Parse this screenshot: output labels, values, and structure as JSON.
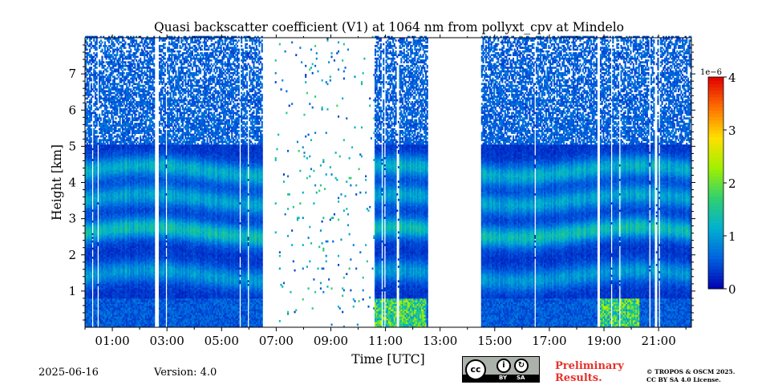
{
  "chart_data": {
    "type": "heatmap",
    "title": "Quasi backscatter coefficient (V1) at 1064 nm from pollyxt_cpv at Mindelo",
    "xlabel": "Time [UTC]",
    "ylabel": "Height [km]",
    "xlim": [
      0.0,
      22.2
    ],
    "ylim": [
      0.0,
      8.0
    ],
    "x_ticks": [
      1,
      3,
      5,
      7,
      9,
      11,
      13,
      15,
      17,
      19,
      21
    ],
    "x_tick_labels": [
      "01:00",
      "03:00",
      "05:00",
      "07:00",
      "09:00",
      "11:00",
      "13:00",
      "15:00",
      "17:00",
      "19:00",
      "21:00"
    ],
    "y_ticks": [
      1,
      2,
      3,
      4,
      5,
      6,
      7
    ],
    "y_tick_labels": [
      "1",
      "2",
      "3",
      "4",
      "5",
      "6",
      "7"
    ],
    "colorbar": {
      "range": [
        0,
        4
      ],
      "ticks": [
        "0",
        "1",
        "2",
        "3",
        "4"
      ],
      "multiplier": "1e−6",
      "colormap": [
        "#0000b0",
        "#0060e0",
        "#00b0d0",
        "#30d070",
        "#a0f000",
        "#ffe000",
        "#ff7000",
        "#e00000"
      ]
    },
    "data_gaps_utc": [
      [
        2.5,
        2.65
      ],
      [
        6.45,
        6.9
      ],
      [
        12.55,
        14.5
      ],
      [
        18.75,
        18.82
      ],
      [
        20.85,
        20.9
      ]
    ],
    "noise_only_utc": [
      [
        6.9,
        10.6
      ]
    ],
    "aerosol_layer_top_km": 5.0,
    "layers": [
      {
        "height_km": 1.4,
        "value": 0.7
      },
      {
        "height_km": 2.6,
        "value": 1.1
      },
      {
        "height_km": 3.5,
        "value": 0.8
      },
      {
        "height_km": 4.3,
        "value": 0.9
      }
    ]
  },
  "footer": {
    "date": "2025-06-16",
    "version": "Version: 4.0",
    "preliminary_line1": "Preliminary",
    "preliminary_line2": "Results.",
    "copyright_line1": "© TROPOS & OSCM 2025.",
    "copyright_line2": "CC BY SA 4.0 License.",
    "license_badge": {
      "logo": "cc",
      "labels": [
        "BY",
        "SA"
      ]
    }
  }
}
